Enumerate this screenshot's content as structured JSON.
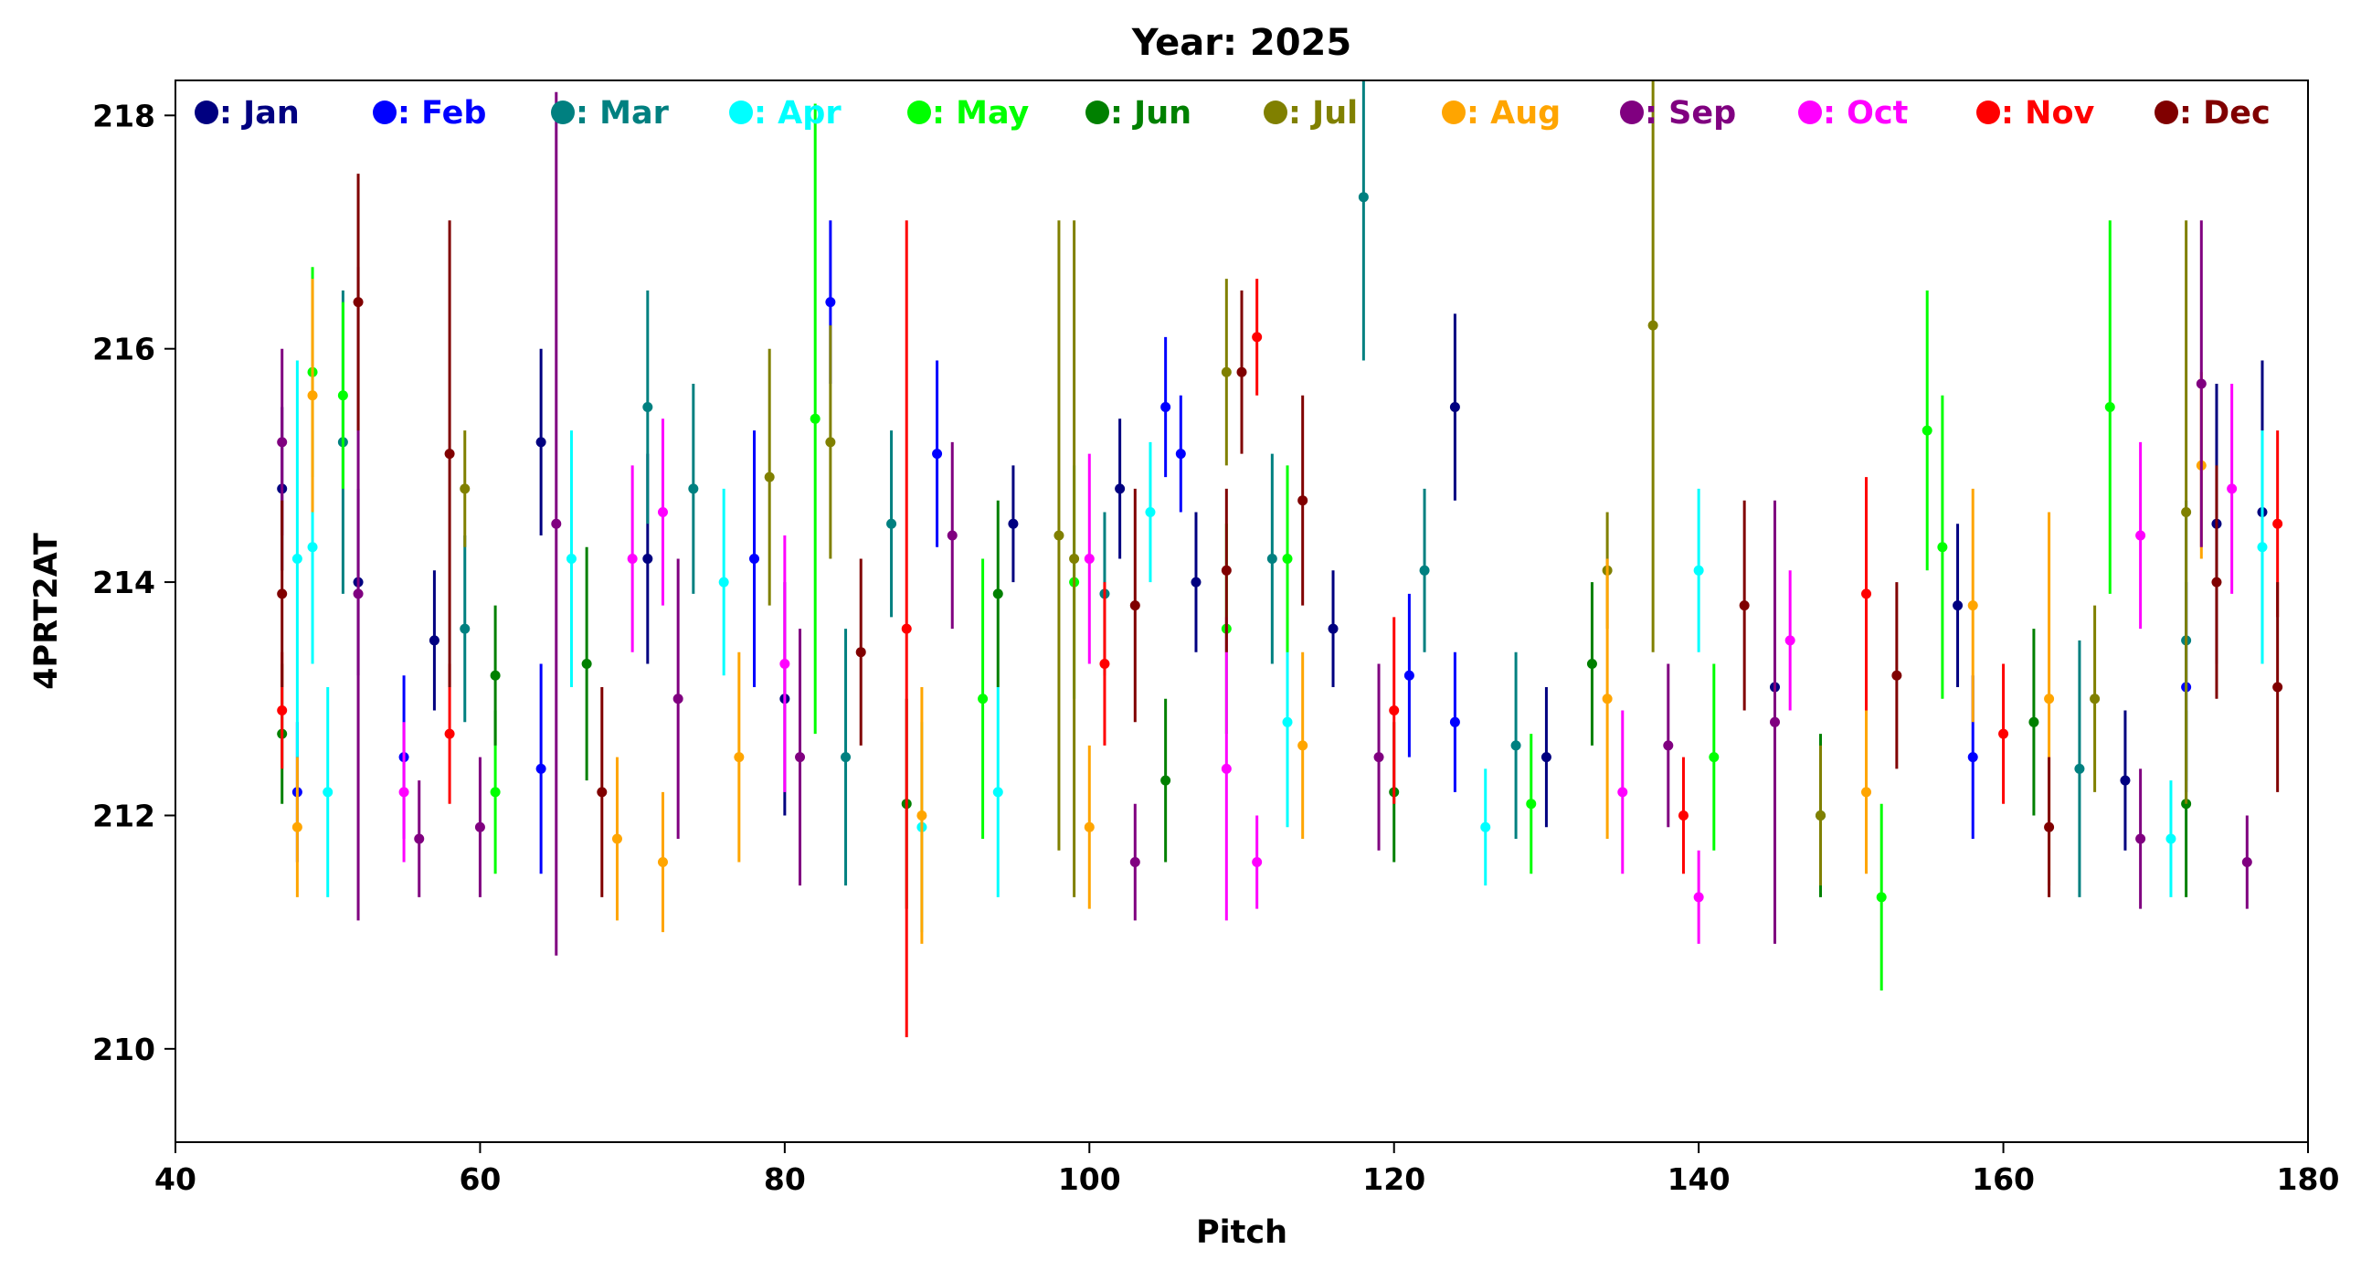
{
  "chart_data": {
    "type": "scatter",
    "title": "Year: 2025",
    "xlabel": "Pitch",
    "ylabel": "4PRT2AT",
    "xlim": [
      40,
      180
    ],
    "ylim": [
      209.2,
      218.3
    ],
    "x_ticks": [
      40,
      60,
      80,
      100,
      120,
      140,
      160,
      180
    ],
    "y_ticks": [
      210,
      212,
      214,
      216,
      218
    ],
    "grid": false,
    "legend_position": "top",
    "series": [
      {
        "name": ": Jan",
        "color": "#000080",
        "points": [
          {
            "x": 47,
            "y": 214.8,
            "err": 0.7
          },
          {
            "x": 52,
            "y": 214.0,
            "err": 0.8
          },
          {
            "x": 57,
            "y": 213.5,
            "err": 0.6
          },
          {
            "x": 64,
            "y": 215.2,
            "err": 0.8
          },
          {
            "x": 71,
            "y": 214.2,
            "err": 0.9
          },
          {
            "x": 80,
            "y": 213.0,
            "err": 1.0
          },
          {
            "x": 95,
            "y": 214.5,
            "err": 0.5
          },
          {
            "x": 102,
            "y": 214.8,
            "err": 0.6
          },
          {
            "x": 107,
            "y": 214.0,
            "err": 0.6
          },
          {
            "x": 116,
            "y": 213.6,
            "err": 0.5
          },
          {
            "x": 124,
            "y": 215.5,
            "err": 0.8
          },
          {
            "x": 130,
            "y": 212.5,
            "err": 0.6
          },
          {
            "x": 145,
            "y": 213.1,
            "err": 0.5
          },
          {
            "x": 157,
            "y": 213.8,
            "err": 0.7
          },
          {
            "x": 168,
            "y": 212.3,
            "err": 0.6
          },
          {
            "x": 174,
            "y": 214.5,
            "err": 1.2
          },
          {
            "x": 177,
            "y": 214.6,
            "err": 1.3
          }
        ]
      },
      {
        "name": ": Feb",
        "color": "#0000ff",
        "points": [
          {
            "x": 48,
            "y": 212.2,
            "err": 0.6
          },
          {
            "x": 55,
            "y": 212.5,
            "err": 0.7
          },
          {
            "x": 64,
            "y": 212.4,
            "err": 0.9
          },
          {
            "x": 78,
            "y": 214.2,
            "err": 1.1
          },
          {
            "x": 83,
            "y": 216.4,
            "err": 0.7
          },
          {
            "x": 90,
            "y": 215.1,
            "err": 0.8
          },
          {
            "x": 105,
            "y": 215.5,
            "err": 0.6
          },
          {
            "x": 106,
            "y": 215.1,
            "err": 0.5
          },
          {
            "x": 121,
            "y": 213.2,
            "err": 0.7
          },
          {
            "x": 124,
            "y": 212.8,
            "err": 0.6
          },
          {
            "x": 158,
            "y": 212.5,
            "err": 0.7
          },
          {
            "x": 172,
            "y": 213.1,
            "err": 0.9
          }
        ]
      },
      {
        "name": ": Mar",
        "color": "#008080",
        "points": [
          {
            "x": 51,
            "y": 215.2,
            "err": 1.3
          },
          {
            "x": 59,
            "y": 213.6,
            "err": 0.8
          },
          {
            "x": 71,
            "y": 215.5,
            "err": 1.0
          },
          {
            "x": 74,
            "y": 214.8,
            "err": 0.9
          },
          {
            "x": 84,
            "y": 212.5,
            "err": 1.1
          },
          {
            "x": 87,
            "y": 214.5,
            "err": 0.8
          },
          {
            "x": 101,
            "y": 213.9,
            "err": 0.7
          },
          {
            "x": 112,
            "y": 214.2,
            "err": 0.9
          },
          {
            "x": 118,
            "y": 217.3,
            "err": 1.4
          },
          {
            "x": 122,
            "y": 214.1,
            "err": 0.7
          },
          {
            "x": 128,
            "y": 212.6,
            "err": 0.8
          },
          {
            "x": 165,
            "y": 212.4,
            "err": 1.1
          },
          {
            "x": 172,
            "y": 213.5,
            "err": 1.2
          }
        ]
      },
      {
        "name": ": Apr",
        "color": "#00ffff",
        "points": [
          {
            "x": 48,
            "y": 214.2,
            "err": 1.7
          },
          {
            "x": 49,
            "y": 214.3,
            "err": 1.0
          },
          {
            "x": 50,
            "y": 212.2,
            "err": 0.9
          },
          {
            "x": 66,
            "y": 214.2,
            "err": 1.1
          },
          {
            "x": 76,
            "y": 214.0,
            "err": 0.8
          },
          {
            "x": 89,
            "y": 211.9,
            "err": 0.9
          },
          {
            "x": 94,
            "y": 212.2,
            "err": 0.9
          },
          {
            "x": 104,
            "y": 214.6,
            "err": 0.6
          },
          {
            "x": 113,
            "y": 212.8,
            "err": 0.9
          },
          {
            "x": 126,
            "y": 211.9,
            "err": 0.5
          },
          {
            "x": 140,
            "y": 214.1,
            "err": 0.7
          },
          {
            "x": 171,
            "y": 211.8,
            "err": 0.5
          },
          {
            "x": 177,
            "y": 214.3,
            "err": 1.0
          }
        ]
      },
      {
        "name": ": May",
        "color": "#00ff00",
        "points": [
          {
            "x": 49,
            "y": 215.8,
            "err": 0.9
          },
          {
            "x": 51,
            "y": 215.6,
            "err": 0.8
          },
          {
            "x": 61,
            "y": 212.2,
            "err": 0.7
          },
          {
            "x": 82,
            "y": 215.4,
            "err": 2.7
          },
          {
            "x": 93,
            "y": 213.0,
            "err": 1.2
          },
          {
            "x": 99,
            "y": 214.0,
            "err": 1.0
          },
          {
            "x": 109,
            "y": 213.6,
            "err": 0.9
          },
          {
            "x": 113,
            "y": 214.2,
            "err": 0.8
          },
          {
            "x": 129,
            "y": 212.1,
            "err": 0.6
          },
          {
            "x": 141,
            "y": 212.5,
            "err": 0.8
          },
          {
            "x": 152,
            "y": 211.3,
            "err": 0.8
          },
          {
            "x": 155,
            "y": 215.3,
            "err": 1.2
          },
          {
            "x": 156,
            "y": 214.3,
            "err": 1.3
          },
          {
            "x": 167,
            "y": 215.5,
            "err": 1.6
          }
        ]
      },
      {
        "name": ": Jun",
        "color": "#008000",
        "points": [
          {
            "x": 47,
            "y": 212.7,
            "err": 0.6
          },
          {
            "x": 61,
            "y": 213.2,
            "err": 0.6
          },
          {
            "x": 67,
            "y": 213.3,
            "err": 1.0
          },
          {
            "x": 88,
            "y": 212.1,
            "err": 0.9
          },
          {
            "x": 94,
            "y": 213.9,
            "err": 0.8
          },
          {
            "x": 105,
            "y": 212.3,
            "err": 0.7
          },
          {
            "x": 120,
            "y": 212.2,
            "err": 0.6
          },
          {
            "x": 133,
            "y": 213.3,
            "err": 0.7
          },
          {
            "x": 148,
            "y": 212.0,
            "err": 0.7
          },
          {
            "x": 162,
            "y": 212.8,
            "err": 0.8
          },
          {
            "x": 172,
            "y": 212.1,
            "err": 0.8
          }
        ]
      },
      {
        "name": ": Jul",
        "color": "#808000",
        "points": [
          {
            "x": 59,
            "y": 214.8,
            "err": 0.5
          },
          {
            "x": 79,
            "y": 214.9,
            "err": 1.1
          },
          {
            "x": 83,
            "y": 215.2,
            "err": 1.0
          },
          {
            "x": 98,
            "y": 214.4,
            "err": 2.7
          },
          {
            "x": 99,
            "y": 214.2,
            "err": 2.9
          },
          {
            "x": 109,
            "y": 215.8,
            "err": 0.8
          },
          {
            "x": 134,
            "y": 214.1,
            "err": 0.5
          },
          {
            "x": 137,
            "y": 216.2,
            "err": 2.8
          },
          {
            "x": 148,
            "y": 212.0,
            "err": 0.6
          },
          {
            "x": 166,
            "y": 213.0,
            "err": 0.8
          },
          {
            "x": 172,
            "y": 214.6,
            "err": 2.5
          }
        ]
      },
      {
        "name": ": Aug",
        "color": "#ffa500",
        "points": [
          {
            "x": 48,
            "y": 211.9,
            "err": 0.6
          },
          {
            "x": 49,
            "y": 215.6,
            "err": 1.0
          },
          {
            "x": 69,
            "y": 211.8,
            "err": 0.7
          },
          {
            "x": 72,
            "y": 211.6,
            "err": 0.6
          },
          {
            "x": 77,
            "y": 212.5,
            "err": 0.9
          },
          {
            "x": 89,
            "y": 212.0,
            "err": 1.1
          },
          {
            "x": 100,
            "y": 211.9,
            "err": 0.7
          },
          {
            "x": 114,
            "y": 212.6,
            "err": 0.8
          },
          {
            "x": 134,
            "y": 213.0,
            "err": 1.2
          },
          {
            "x": 151,
            "y": 212.2,
            "err": 0.7
          },
          {
            "x": 158,
            "y": 213.8,
            "err": 1.0
          },
          {
            "x": 163,
            "y": 213.0,
            "err": 1.6
          },
          {
            "x": 173,
            "y": 215.0,
            "err": 0.8
          }
        ]
      },
      {
        "name": ": Sep",
        "color": "#800080",
        "points": [
          {
            "x": 47,
            "y": 215.2,
            "err": 0.8
          },
          {
            "x": 52,
            "y": 213.9,
            "err": 2.8
          },
          {
            "x": 56,
            "y": 211.8,
            "err": 0.5
          },
          {
            "x": 60,
            "y": 211.9,
            "err": 0.6
          },
          {
            "x": 65,
            "y": 214.5,
            "err": 3.7
          },
          {
            "x": 73,
            "y": 213.0,
            "err": 1.2
          },
          {
            "x": 81,
            "y": 212.5,
            "err": 1.1
          },
          {
            "x": 91,
            "y": 214.4,
            "err": 0.8
          },
          {
            "x": 103,
            "y": 211.6,
            "err": 0.5
          },
          {
            "x": 119,
            "y": 212.5,
            "err": 0.8
          },
          {
            "x": 138,
            "y": 212.6,
            "err": 0.7
          },
          {
            "x": 145,
            "y": 212.8,
            "err": 1.9
          },
          {
            "x": 169,
            "y": 211.8,
            "err": 0.6
          },
          {
            "x": 173,
            "y": 215.7,
            "err": 1.4
          },
          {
            "x": 176,
            "y": 211.6,
            "err": 0.4
          }
        ]
      },
      {
        "name": ": Oct",
        "color": "#ff00ff",
        "points": [
          {
            "x": 55,
            "y": 212.2,
            "err": 0.6
          },
          {
            "x": 70,
            "y": 214.2,
            "err": 0.8
          },
          {
            "x": 72,
            "y": 214.6,
            "err": 0.8
          },
          {
            "x": 80,
            "y": 213.3,
            "err": 1.1
          },
          {
            "x": 100,
            "y": 214.2,
            "err": 0.9
          },
          {
            "x": 109,
            "y": 212.4,
            "err": 1.3
          },
          {
            "x": 111,
            "y": 211.6,
            "err": 0.4
          },
          {
            "x": 135,
            "y": 212.2,
            "err": 0.7
          },
          {
            "x": 140,
            "y": 211.3,
            "err": 0.4
          },
          {
            "x": 146,
            "y": 213.5,
            "err": 0.6
          },
          {
            "x": 169,
            "y": 214.4,
            "err": 0.8
          },
          {
            "x": 175,
            "y": 214.8,
            "err": 0.9
          }
        ]
      },
      {
        "name": ": Nov",
        "color": "#ff0000",
        "points": [
          {
            "x": 47,
            "y": 212.9,
            "err": 0.5
          },
          {
            "x": 58,
            "y": 212.7,
            "err": 0.6
          },
          {
            "x": 88,
            "y": 213.6,
            "err": 3.5
          },
          {
            "x": 101,
            "y": 213.3,
            "err": 0.7
          },
          {
            "x": 111,
            "y": 216.1,
            "err": 0.5
          },
          {
            "x": 120,
            "y": 212.9,
            "err": 0.8
          },
          {
            "x": 139,
            "y": 212.0,
            "err": 0.5
          },
          {
            "x": 151,
            "y": 213.9,
            "err": 1.0
          },
          {
            "x": 160,
            "y": 212.7,
            "err": 0.6
          },
          {
            "x": 178,
            "y": 214.5,
            "err": 0.8
          }
        ]
      },
      {
        "name": ": Dec",
        "color": "#800000",
        "points": [
          {
            "x": 47,
            "y": 213.9,
            "err": 0.8
          },
          {
            "x": 52,
            "y": 216.4,
            "err": 1.1
          },
          {
            "x": 58,
            "y": 215.1,
            "err": 2.0
          },
          {
            "x": 68,
            "y": 212.2,
            "err": 0.9
          },
          {
            "x": 85,
            "y": 213.4,
            "err": 0.8
          },
          {
            "x": 103,
            "y": 213.8,
            "err": 1.0
          },
          {
            "x": 109,
            "y": 214.1,
            "err": 0.7
          },
          {
            "x": 110,
            "y": 215.8,
            "err": 0.7
          },
          {
            "x": 114,
            "y": 214.7,
            "err": 0.9
          },
          {
            "x": 143,
            "y": 213.8,
            "err": 0.9
          },
          {
            "x": 153,
            "y": 213.2,
            "err": 0.8
          },
          {
            "x": 163,
            "y": 211.9,
            "err": 0.6
          },
          {
            "x": 174,
            "y": 214.0,
            "err": 1.0
          },
          {
            "x": 178,
            "y": 213.1,
            "err": 0.9
          }
        ]
      }
    ]
  }
}
